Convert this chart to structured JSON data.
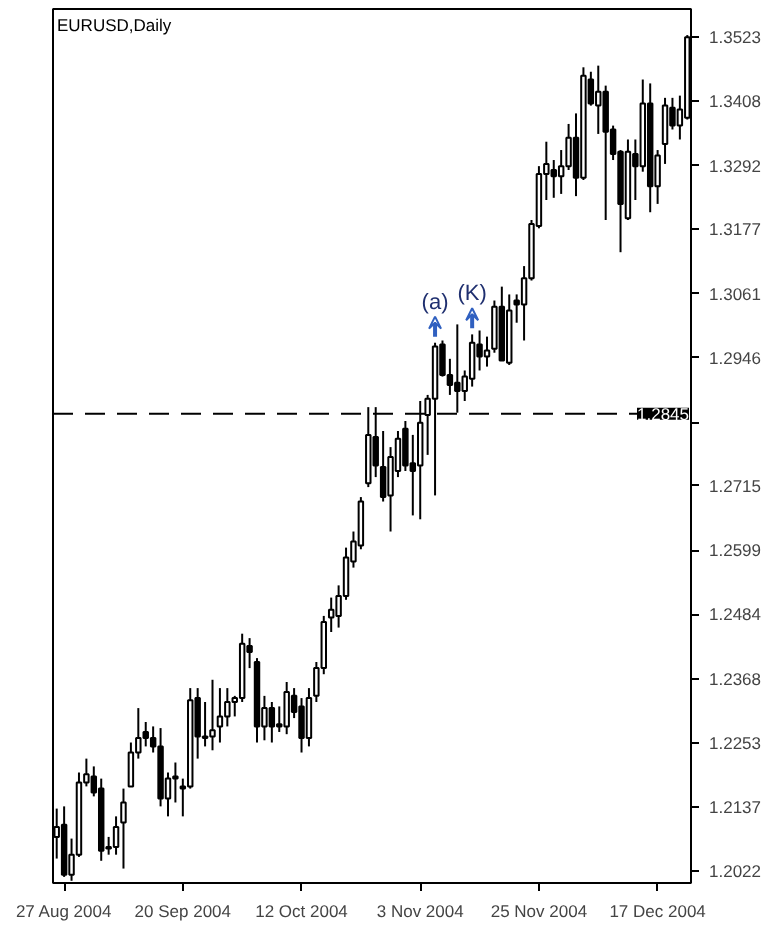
{
  "chart_data": {
    "type": "candlestick",
    "title": "EURUSD,Daily",
    "categories": [
      null,
      "27 Aug 2004",
      null,
      null,
      null,
      null,
      null,
      null,
      null,
      null,
      null,
      null,
      null,
      null,
      null,
      null,
      null,
      "20 Sep 2004",
      null,
      null,
      null,
      null,
      null,
      null,
      null,
      null,
      null,
      null,
      null,
      null,
      null,
      null,
      null,
      "12 Oct 2004",
      null,
      null,
      null,
      null,
      null,
      null,
      null,
      null,
      null,
      null,
      null,
      null,
      null,
      null,
      null,
      "3 Nov 2004",
      null,
      null,
      null,
      null,
      null,
      null,
      null,
      null,
      null,
      null,
      null,
      null,
      null,
      null,
      null,
      "25 Nov 2004",
      null,
      null,
      null,
      null,
      null,
      null,
      null,
      null,
      null,
      null,
      null,
      null,
      null,
      null,
      null,
      "17 Dec 2004",
      null,
      null,
      null,
      null
    ],
    "ohlc": [
      [
        1.2083,
        1.2134,
        1.2044,
        1.2101
      ],
      [
        1.2105,
        1.2138,
        1.2011,
        1.2015
      ],
      [
        1.2015,
        1.208,
        1.2004,
        1.2051
      ],
      [
        1.2051,
        1.2199,
        1.2047,
        1.2181
      ],
      [
        1.2181,
        1.2224,
        1.2174,
        1.2196
      ],
      [
        1.2192,
        1.221,
        1.2156,
        1.2163
      ],
      [
        1.217,
        1.2188,
        1.204,
        1.2058
      ],
      [
        1.2065,
        1.2083,
        1.2051,
        1.2062
      ],
      [
        1.2065,
        1.212,
        1.2051,
        1.2101
      ],
      [
        1.2109,
        1.217,
        1.2026,
        1.2145
      ],
      [
        1.2174,
        1.2253,
        1.2174,
        1.2235
      ],
      [
        1.2235,
        1.2315,
        1.2224,
        1.2261
      ],
      [
        1.2272,
        1.229,
        1.2246,
        1.2261
      ],
      [
        1.2261,
        1.2282,
        1.2235,
        1.2246
      ],
      [
        1.2246,
        1.2279,
        1.2138,
        1.2152
      ],
      [
        1.2152,
        1.2199,
        1.212,
        1.2188
      ],
      [
        1.2188,
        1.2217,
        1.2145,
        1.2192
      ],
      [
        1.217,
        1.2188,
        1.212,
        1.2174
      ],
      [
        1.2174,
        1.2351,
        1.217,
        1.2329
      ],
      [
        1.2333,
        1.2351,
        1.2224,
        1.2264
      ],
      [
        1.2261,
        1.2326,
        1.2246,
        1.2264
      ],
      [
        1.2264,
        1.2366,
        1.2239,
        1.2275
      ],
      [
        1.2282,
        1.2351,
        1.2253,
        1.23
      ],
      [
        1.23,
        1.2351,
        1.2282,
        1.2326
      ],
      [
        1.2326,
        1.2337,
        1.23,
        1.2333
      ],
      [
        1.2333,
        1.2449,
        1.2326,
        1.2431
      ],
      [
        1.2427,
        1.2441,
        1.2387,
        1.2416
      ],
      [
        1.2398,
        1.2405,
        1.2253,
        1.2282
      ],
      [
        1.2282,
        1.2337,
        1.2257,
        1.2315
      ],
      [
        1.2315,
        1.2326,
        1.2253,
        1.2282
      ],
      [
        1.2286,
        1.2318,
        1.2272,
        1.2282
      ],
      [
        1.2282,
        1.2362,
        1.2268,
        1.2344
      ],
      [
        1.2337,
        1.2351,
        1.2297,
        1.2308
      ],
      [
        1.2318,
        1.2333,
        1.2235,
        1.2261
      ],
      [
        1.2261,
        1.2351,
        1.2246,
        1.2333
      ],
      [
        1.2337,
        1.2398,
        1.2326,
        1.2387
      ],
      [
        1.2387,
        1.2481,
        1.2376,
        1.247
      ],
      [
        1.2478,
        1.2514,
        1.2452,
        1.2492
      ],
      [
        1.2481,
        1.2536,
        1.246,
        1.2517
      ],
      [
        1.2517,
        1.2604,
        1.251,
        1.2586
      ],
      [
        1.2579,
        1.2633,
        1.2568,
        1.2615
      ],
      [
        1.2608,
        1.2695,
        1.2601,
        1.2687
      ],
      [
        1.272,
        1.2857,
        1.2713,
        1.2807
      ],
      [
        1.2803,
        1.2857,
        1.2731,
        1.2752
      ],
      [
        1.2749,
        1.2814,
        1.2687,
        1.2695
      ],
      [
        1.2698,
        1.2785,
        1.2633,
        1.2767
      ],
      [
        1.2742,
        1.2814,
        1.2731,
        1.28
      ],
      [
        1.2818,
        1.2832,
        1.2742,
        1.2752
      ],
      [
        1.2756,
        1.2807,
        1.2662,
        1.2742
      ],
      [
        1.2752,
        1.2868,
        1.2655,
        1.2829
      ],
      [
        1.2843,
        1.2879,
        1.2771,
        1.2872
      ],
      [
        1.2872,
        1.2973,
        1.2698,
        1.2966
      ],
      [
        1.297,
        1.2977,
        1.2912,
        1.2915
      ],
      [
        1.2915,
        1.2944,
        1.2879,
        1.2897
      ],
      [
        1.2901,
        1.3006,
        1.2847,
        1.2886
      ],
      [
        1.2886,
        1.2923,
        1.2868,
        1.2912
      ],
      [
        1.2908,
        1.2988,
        1.2894,
        1.2973
      ],
      [
        1.297,
        1.2995,
        1.2923,
        1.2948
      ],
      [
        1.2948,
        1.2984,
        1.293,
        1.2959
      ],
      [
        1.2962,
        1.3049,
        1.2955,
        1.3038
      ],
      [
        1.3038,
        1.3074,
        1.2941,
        1.2941
      ],
      [
        1.2937,
        1.306,
        1.2933,
        1.3031
      ],
      [
        1.3049,
        1.306,
        1.3009,
        1.3042
      ],
      [
        1.3042,
        1.3111,
        1.2977,
        1.3089
      ],
      [
        1.3089,
        1.3194,
        1.3085,
        1.3187
      ],
      [
        1.3183,
        1.3291,
        1.3179,
        1.3277
      ],
      [
        1.3277,
        1.3335,
        1.323,
        1.3295
      ],
      [
        1.3284,
        1.3302,
        1.3234,
        1.3273
      ],
      [
        1.3273,
        1.332,
        1.3241,
        1.3291
      ],
      [
        1.3291,
        1.3367,
        1.3284,
        1.3342
      ],
      [
        1.3342,
        1.3386,
        1.3237,
        1.327
      ],
      [
        1.327,
        1.3469,
        1.3266,
        1.3454
      ],
      [
        1.3447,
        1.3461,
        1.34,
        1.3404
      ],
      [
        1.34,
        1.3472,
        1.3349,
        1.3425
      ],
      [
        1.3425,
        1.3436,
        1.3194,
        1.3353
      ],
      [
        1.3357,
        1.3364,
        1.3302,
        1.3313
      ],
      [
        1.3317,
        1.332,
        1.3136,
        1.3223
      ],
      [
        1.3197,
        1.3339,
        1.3194,
        1.3317
      ],
      [
        1.3313,
        1.3339,
        1.323,
        1.3291
      ],
      [
        1.3291,
        1.3447,
        1.3281,
        1.3404
      ],
      [
        1.3404,
        1.344,
        1.3208,
        1.3255
      ],
      [
        1.3255,
        1.332,
        1.3223,
        1.331
      ],
      [
        1.3331,
        1.3414,
        1.3295,
        1.34
      ],
      [
        1.3396,
        1.3414,
        1.3357,
        1.3364
      ],
      [
        1.3364,
        1.3418,
        1.3339,
        1.3393
      ],
      [
        1.3378,
        1.3527,
        1.3375,
        1.3523
      ]
    ],
    "color": "#000000",
    "ylim": [
      1.2,
      1.3574
    ],
    "yticks": [
      1.2022,
      1.2137,
      1.2253,
      1.2368,
      1.2484,
      1.2599,
      1.2715,
      {
        "value": 1.283,
        "label": null
      },
      1.2946,
      1.3061,
      1.3177,
      1.3292,
      1.3408,
      1.3523
    ],
    "ref_lines": [
      {
        "axis": "y",
        "value": 1.2845,
        "label": "1.2845",
        "color": "#000000",
        "line_style": "dashed"
      }
    ],
    "annotations": [
      {
        "text": "(a)",
        "y": 1.2973
      },
      {
        "text": "(K)",
        "y": 1.2988
      }
    ],
    "grid": false
  }
}
